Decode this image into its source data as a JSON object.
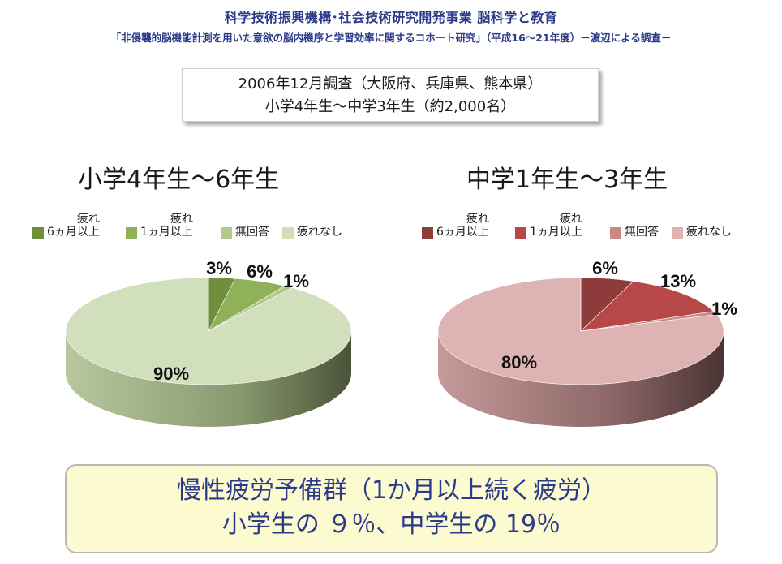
{
  "header": {
    "title": "科学技術振興機構･社会技術研究開発事業 脳科学と教育",
    "subtitle": "「非侵襲的脳機能計測を用いた意欲の脳内機序と学習効率に関するコホート研究」（平成16～21年度）－渡辺による調査－"
  },
  "survey": {
    "line1": "2006年12月調査（大阪府、兵庫県、熊本県）",
    "line2": "小学4年生～中学3年生（約2,000名）"
  },
  "chart_data": [
    {
      "type": "pie",
      "title": "小学4年生～6年生",
      "categories": [
        "疲れ 6ヵ月以上",
        "疲れ 1ヵ月以上",
        "無回答",
        "疲れなし"
      ],
      "values": [
        3,
        6,
        1,
        90
      ],
      "labels": [
        "3%",
        "6%",
        "1%",
        "90%"
      ],
      "legend": [
        {
          "line1": "疲れ",
          "line2": "6ヵ月以上",
          "color": "#6f8f3f"
        },
        {
          "line1": "疲れ",
          "line2": "1ヵ月以上",
          "color": "#8fb258"
        },
        {
          "line1": "",
          "line2": "無回答",
          "color": "#b3ca8a"
        },
        {
          "line1": "",
          "line2": "疲れなし",
          "color": "#d2dfbc"
        }
      ],
      "legend_position": "top"
    },
    {
      "type": "pie",
      "title": "中学1年生～3年生",
      "categories": [
        "疲れ 6ヵ月以上",
        "疲れ 1ヵ月以上",
        "無回答",
        "疲れなし"
      ],
      "values": [
        6,
        13,
        1,
        80
      ],
      "labels": [
        "6%",
        "13%",
        "1%",
        "80%"
      ],
      "legend": [
        {
          "line1": "疲れ",
          "line2": "6ヵ月以上",
          "color": "#8e3b3b"
        },
        {
          "line1": "疲れ",
          "line2": "1ヵ月以上",
          "color": "#b84848"
        },
        {
          "line1": "",
          "line2": "無回答",
          "color": "#cc8787"
        },
        {
          "line1": "",
          "line2": "疲れなし",
          "color": "#ddb3b3"
        }
      ],
      "legend_position": "top"
    }
  ],
  "summary": {
    "line1": "慢性疲労予備群（1か月以上続く疲労）",
    "line2": "小学生の ９％、中学生の 19％"
  }
}
